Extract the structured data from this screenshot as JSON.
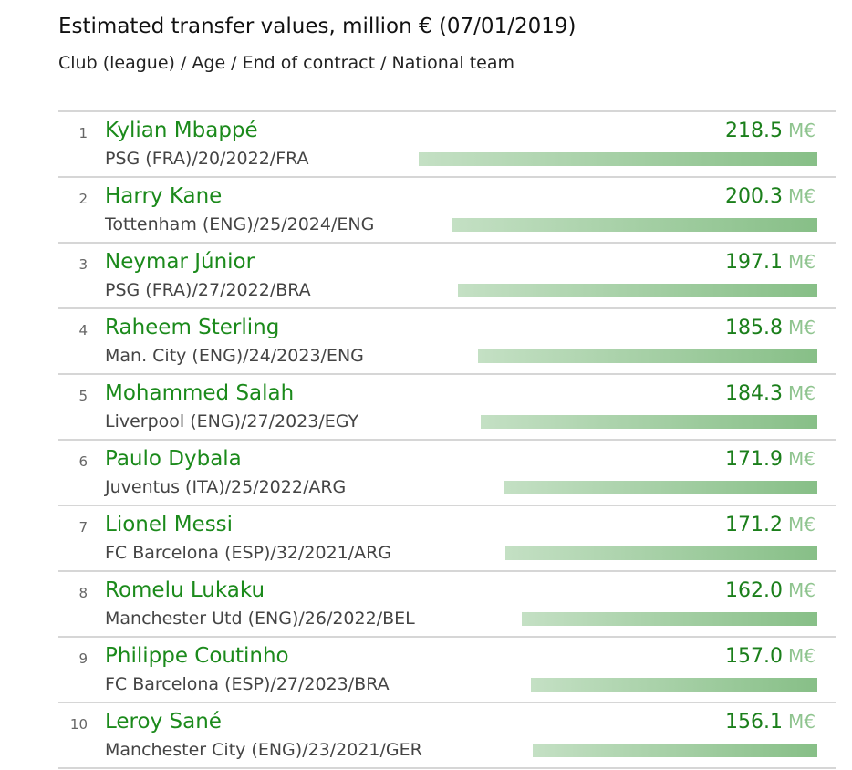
{
  "title": "Estimated transfer values, million € (07/01/2019)",
  "subtitle": "Club (league) / Age / End of contract / National team",
  "unit": "M€",
  "chart_data": {
    "type": "bar",
    "title": "Estimated transfer values, million € (07/01/2019)",
    "subtitle": "Club (league) / Age / End of contract / National team",
    "xlabel": "",
    "ylabel": "million €",
    "rows": [
      {
        "rank": "1",
        "name": "Kylian Mbappé",
        "meta": "PSG (FRA)/20/2022/FRA",
        "value": "218.5"
      },
      {
        "rank": "2",
        "name": "Harry Kane",
        "meta": "Tottenham (ENG)/25/2024/ENG",
        "value": "200.3"
      },
      {
        "rank": "3",
        "name": "Neymar Júnior",
        "meta": "PSG (FRA)/27/2022/BRA",
        "value": "197.1"
      },
      {
        "rank": "4",
        "name": "Raheem Sterling",
        "meta": "Man. City (ENG)/24/2023/ENG",
        "value": "185.8"
      },
      {
        "rank": "5",
        "name": "Mohammed Salah",
        "meta": "Liverpool (ENG)/27/2023/EGY",
        "value": "184.3"
      },
      {
        "rank": "6",
        "name": "Paulo Dybala",
        "meta": "Juventus (ITA)/25/2022/ARG",
        "value": "171.9"
      },
      {
        "rank": "7",
        "name": "Lionel Messi",
        "meta": "FC Barcelona (ESP)/32/2021/ARG",
        "value": "171.2"
      },
      {
        "rank": "8",
        "name": "Romelu Lukaku",
        "meta": "Manchester Utd (ENG)/26/2022/BEL",
        "value": "162.0"
      },
      {
        "rank": "9",
        "name": "Philippe Coutinho",
        "meta": "FC Barcelona (ESP)/27/2023/BRA",
        "value": "157.0"
      },
      {
        "rank": "10",
        "name": "Leroy Sané",
        "meta": "Manchester City (ENG)/23/2021/GER",
        "value": "156.1"
      }
    ],
    "colors": {
      "name": "#1b8a1b",
      "bar_start": "#c4e0c4",
      "bar_end": "#87bf87"
    }
  }
}
